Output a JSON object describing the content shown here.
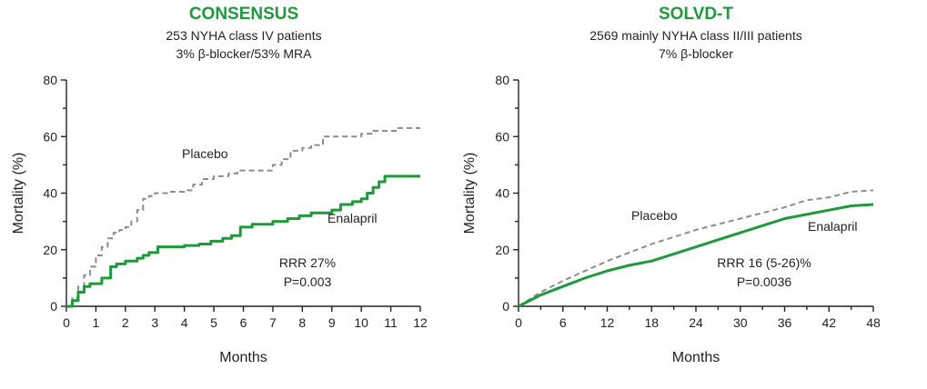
{
  "colors": {
    "title": "#1f9a3b",
    "enalapril": "#1f9a3b",
    "placebo": "#8c8c8c",
    "axis": "#222222"
  },
  "chart_data": [
    {
      "type": "line",
      "title": "CONSENSUS",
      "subtitle_lines": [
        "253 NYHA class IV patients",
        "3% β-blocker/53% MRA"
      ],
      "xlabel": "Months",
      "ylabel": "Mortality (%)",
      "xlim": [
        0,
        12
      ],
      "ylim": [
        0,
        80
      ],
      "xticks": [
        0,
        1,
        2,
        3,
        4,
        5,
        6,
        7,
        8,
        9,
        10,
        11,
        12
      ],
      "yticks": [
        0,
        20,
        40,
        60,
        80
      ],
      "step": true,
      "grid": false,
      "annotations": [
        "RRR 27%",
        "P=0.003"
      ],
      "series": [
        {
          "name": "Placebo",
          "style": "dashed",
          "label": "Placebo",
          "x": [
            0,
            0.2,
            0.4,
            0.6,
            0.8,
            1.0,
            1.2,
            1.4,
            1.6,
            1.8,
            2.0,
            2.2,
            2.4,
            2.6,
            2.8,
            3.0,
            3.5,
            4.0,
            4.3,
            4.6,
            5.0,
            5.5,
            5.8,
            6.3,
            6.8,
            7.0,
            7.3,
            7.6,
            8.0,
            8.3,
            8.7,
            9.0,
            9.5,
            10.0,
            10.4,
            10.8,
            11.2,
            12.0
          ],
          "y": [
            0,
            3,
            7,
            11,
            14,
            18,
            21,
            24,
            26,
            27,
            28,
            30,
            34,
            38,
            39,
            40,
            40.5,
            41,
            43,
            45,
            46,
            47,
            48,
            48,
            48,
            50,
            52,
            55,
            56,
            57,
            60,
            60,
            60,
            61,
            62,
            62,
            63,
            63
          ]
        },
        {
          "name": "Enalapril",
          "style": "solid",
          "label": "Enalapril",
          "x": [
            0,
            0.2,
            0.4,
            0.6,
            0.8,
            1.2,
            1.5,
            1.7,
            2.0,
            2.4,
            2.6,
            2.8,
            3.1,
            3.5,
            4.0,
            4.5,
            4.9,
            5.3,
            5.6,
            5.9,
            6.3,
            6.6,
            7.0,
            7.5,
            7.9,
            8.3,
            8.6,
            9.0,
            9.3,
            9.7,
            10.0,
            10.2,
            10.4,
            10.6,
            10.8,
            11.2,
            12.0
          ],
          "y": [
            0,
            2,
            5,
            7,
            8,
            10,
            14,
            15,
            16,
            17,
            18,
            19,
            21,
            21,
            21.5,
            22,
            23,
            24,
            25,
            28,
            29,
            29,
            30,
            31,
            32,
            33,
            33,
            34,
            36,
            37,
            38,
            40,
            42,
            44,
            46,
            46,
            46
          ]
        }
      ]
    },
    {
      "type": "line",
      "title": "SOLVD-T",
      "subtitle_lines": [
        "2569 mainly NYHA class II/III patients",
        "7% β-blocker"
      ],
      "xlabel": "Months",
      "ylabel": "Mortality (%)",
      "xlim": [
        0,
        48
      ],
      "ylim": [
        0,
        80
      ],
      "xticks": [
        0,
        6,
        12,
        18,
        24,
        30,
        36,
        42,
        48
      ],
      "yticks": [
        0,
        20,
        40,
        60,
        80
      ],
      "step": false,
      "grid": false,
      "annotations": [
        "RRR 16 (5-26)%",
        "P=0.0036"
      ],
      "series": [
        {
          "name": "Placebo",
          "style": "dashed",
          "label": "Placebo",
          "x": [
            0,
            3,
            6,
            9,
            12,
            15,
            18,
            21,
            24,
            27,
            30,
            33,
            36,
            39,
            42,
            45,
            48
          ],
          "y": [
            0,
            5,
            9,
            12.5,
            16,
            19,
            22,
            24.5,
            27,
            29,
            31,
            33,
            35,
            37.5,
            38.5,
            40.5,
            41
          ]
        },
        {
          "name": "Enalapril",
          "style": "solid",
          "label": "Enalapril",
          "x": [
            0,
            3,
            6,
            9,
            12,
            15,
            18,
            21,
            24,
            27,
            30,
            33,
            36,
            39,
            42,
            45,
            48
          ],
          "y": [
            0,
            4,
            7,
            10,
            12.5,
            14.5,
            16,
            18.5,
            21,
            23.5,
            26,
            28.5,
            31,
            32.5,
            34,
            35.5,
            36
          ]
        }
      ]
    }
  ]
}
